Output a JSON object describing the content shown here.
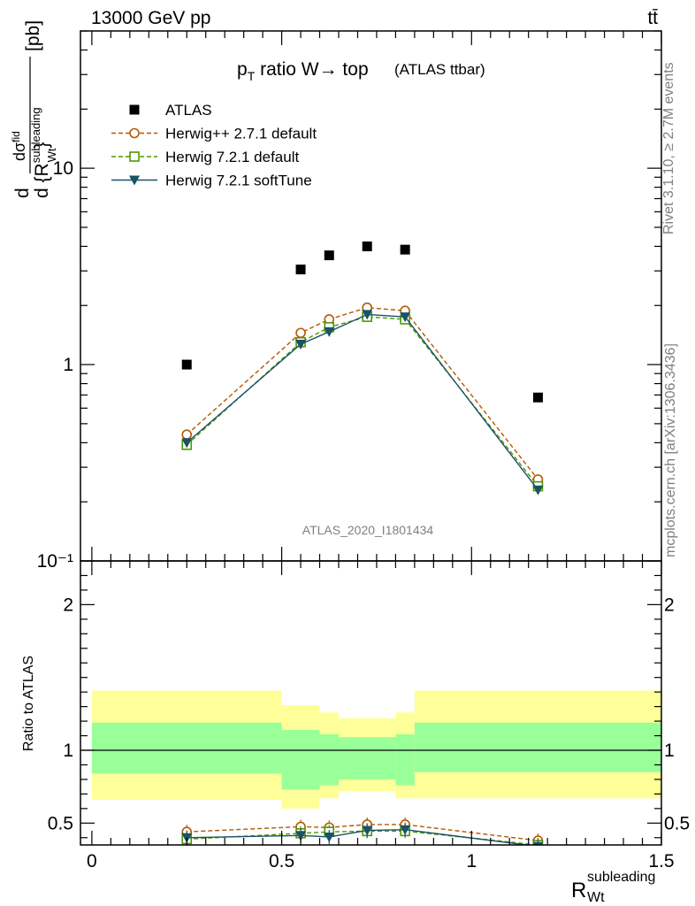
{
  "header": {
    "energy_label": "13000 GeV pp",
    "process_label": "tt̄"
  },
  "side_labels": {
    "rivet": "Rivet 3.1.10, ≥ 2.7M events",
    "mcplots": "mcplots.cern.ch [arXiv:1306.3436]"
  },
  "chart_data": [
    {
      "type": "scatter",
      "panel": "main",
      "title": "p_T ratio W→ top",
      "title_pre": "p",
      "title_sub": "T",
      "title_post": " ratio W→ top",
      "subtitle": "(ATLAS ttbar)",
      "ylabel": "dσ^fid / d{R_Wt^subleading} [pb]",
      "ylabel_parts": {
        "d": "d",
        "sigma": "dσ",
        "sigma_sup": "fid",
        "den": "d {R",
        "den_sup": "subleading",
        "den_sub": "Wt",
        "den_close": "}",
        "unit": "[pb]"
      },
      "analysis_label": "ATLAS_2020_I1801434",
      "yscale": "log",
      "ylim": [
        0.1,
        50
      ],
      "xlim": [
        -0.03,
        1.5
      ],
      "y_tick_labels": [
        "10⁻¹",
        "1",
        "10"
      ],
      "legend_position": "top-left",
      "series": [
        {
          "name": "ATLAS",
          "style": "filled-square",
          "color": "#000000",
          "x": [
            0.25,
            0.55,
            0.625,
            0.725,
            0.825,
            1.175
          ],
          "y": [
            1.0,
            3.05,
            3.6,
            4.0,
            3.85,
            0.68
          ]
        },
        {
          "name": "Herwig++ 2.7.1 default",
          "style": "open-circle-dashed",
          "color": "#b35900",
          "x": [
            0.25,
            0.55,
            0.625,
            0.725,
            0.825,
            1.175
          ],
          "y": [
            0.44,
            1.45,
            1.7,
            1.95,
            1.88,
            0.26
          ]
        },
        {
          "name": "Herwig 7.2.1 default",
          "style": "open-square-dashed",
          "color": "#4d9900",
          "x": [
            0.25,
            0.55,
            0.625,
            0.725,
            0.825,
            1.175
          ],
          "y": [
            0.39,
            1.3,
            1.55,
            1.75,
            1.7,
            0.24
          ]
        },
        {
          "name": "Herwig 7.2.1 softTune",
          "style": "filled-triangle-solid",
          "color": "#1a5266",
          "x": [
            0.25,
            0.55,
            0.625,
            0.725,
            0.825,
            1.175
          ],
          "y": [
            0.4,
            1.27,
            1.47,
            1.8,
            1.75,
            0.23
          ]
        }
      ]
    },
    {
      "type": "line",
      "panel": "ratio",
      "ylabel": "Ratio to ATLAS",
      "xlabel": "R_Wt^subleading",
      "xlabel_parts": {
        "base": "R",
        "sup": "subleading",
        "sub": "Wt"
      },
      "ylim": [
        0.35,
        2.3
      ],
      "xlim": [
        -0.03,
        1.5
      ],
      "x_tick_labels": [
        "0",
        "0.5",
        "1",
        "1.5"
      ],
      "y_tick_labels": [
        "0.5",
        "1",
        "2"
      ],
      "bands": {
        "edges": [
          0,
          0.5,
          0.6,
          0.65,
          0.8,
          0.85,
          1.5
        ],
        "inner_lo": [
          0.84,
          0.73,
          0.76,
          0.8,
          0.76,
          0.85
        ],
        "inner_hi": [
          1.19,
          1.14,
          1.11,
          1.09,
          1.11,
          1.19
        ],
        "outer_lo": [
          0.66,
          0.6,
          0.67,
          0.72,
          0.67,
          0.67
        ],
        "outer_hi": [
          1.41,
          1.31,
          1.26,
          1.22,
          1.26,
          1.41
        ],
        "inner_color": "#99ff99",
        "outer_color": "#ffff99"
      },
      "series": [
        {
          "name": "Herwig++ 2.7.1 default",
          "color": "#b35900",
          "x": [
            0.25,
            0.55,
            0.625,
            0.725,
            0.825,
            1.175
          ],
          "y": [
            0.44,
            0.475,
            0.47,
            0.49,
            0.49,
            0.38
          ]
        },
        {
          "name": "Herwig 7.2.1 default",
          "color": "#4d9900",
          "x": [
            0.25,
            0.55,
            0.625,
            0.725,
            0.825,
            1.175
          ],
          "y": [
            0.39,
            0.43,
            0.44,
            0.445,
            0.445,
            0.35
          ]
        },
        {
          "name": "Herwig 7.2.1 softTune",
          "color": "#1a5266",
          "x": [
            0.25,
            0.55,
            0.625,
            0.725,
            0.825,
            1.175
          ],
          "y": [
            0.4,
            0.415,
            0.405,
            0.45,
            0.455,
            0.34
          ]
        }
      ]
    }
  ]
}
